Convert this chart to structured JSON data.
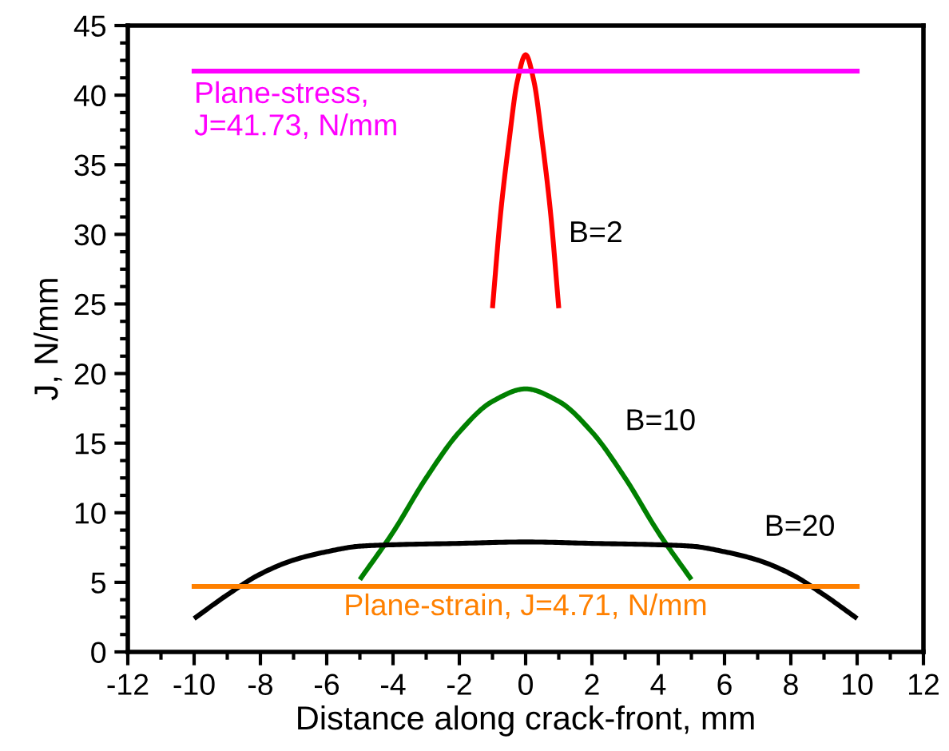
{
  "chart_data": {
    "type": "line",
    "xlabel": "Distance along crack-front, mm",
    "ylabel": "J, N/mm",
    "series": [
      {
        "name": "B=2",
        "color": "#ff0000",
        "x": [
          -1,
          -0.75,
          -0.5,
          -0.25,
          0,
          0.25,
          0.5,
          0.75,
          1
        ],
        "values": [
          24.7,
          31.6,
          36.7,
          41.0,
          42.9,
          41.0,
          36.7,
          31.6,
          24.7
        ]
      },
      {
        "name": "B=10",
        "color": "#008000",
        "x": [
          -5,
          -4,
          -3,
          -2,
          -1,
          0,
          1,
          2,
          3,
          4,
          5
        ],
        "values": [
          5.2,
          8.6,
          12.5,
          15.8,
          18.0,
          18.9,
          18.0,
          15.8,
          12.5,
          8.6,
          5.2
        ]
      },
      {
        "name": "B=20",
        "color": "#000000",
        "x": [
          -10,
          -9,
          -8,
          -7,
          -6,
          -5,
          -4,
          -2,
          0,
          2,
          4,
          5,
          6,
          7,
          8,
          9,
          10
        ],
        "values": [
          2.4,
          4.1,
          5.6,
          6.6,
          7.2,
          7.6,
          7.7,
          7.8,
          7.9,
          7.8,
          7.7,
          7.6,
          7.2,
          6.6,
          5.6,
          4.1,
          2.4
        ]
      }
    ],
    "ref_lines": [
      {
        "axis": "y",
        "value": 41.73,
        "label": "Plane-stress,\nJ=41.73, N/mm",
        "color": "#ff00ff"
      },
      {
        "axis": "y",
        "value": 4.71,
        "label": "Plane-strain, J=4.71, N/mm",
        "color": "#ff8000"
      }
    ],
    "xlim": [
      -12,
      12
    ],
    "xticks": [
      -12,
      {
        "value": -11,
        "label": null
      },
      -10,
      {
        "value": -9,
        "label": null
      },
      -8,
      {
        "value": -7,
        "label": null
      },
      -6,
      {
        "value": -5,
        "label": null
      },
      -4,
      {
        "value": -3,
        "label": null
      },
      -2,
      {
        "value": -1,
        "label": null
      },
      0,
      {
        "value": 1,
        "label": null
      },
      2,
      {
        "value": 3,
        "label": null
      },
      4,
      {
        "value": 5,
        "label": null
      },
      6,
      {
        "value": 7,
        "label": null
      },
      8,
      {
        "value": 9,
        "label": null
      },
      10,
      {
        "value": 11,
        "label": null
      },
      12
    ],
    "ylim": [
      0,
      45
    ],
    "yticks": [
      0,
      {
        "value": 1.25,
        "label": null
      },
      {
        "value": 2.5,
        "label": null
      },
      {
        "value": 3.75,
        "label": null
      },
      5,
      {
        "value": 6.25,
        "label": null
      },
      {
        "value": 7.5,
        "label": null
      },
      {
        "value": 8.75,
        "label": null
      },
      10,
      {
        "value": 11.25,
        "label": null
      },
      {
        "value": 12.5,
        "label": null
      },
      {
        "value": 13.75,
        "label": null
      },
      15,
      {
        "value": 16.25,
        "label": null
      },
      {
        "value": 17.5,
        "label": null
      },
      {
        "value": 18.75,
        "label": null
      },
      20,
      {
        "value": 21.25,
        "label": null
      },
      {
        "value": 22.5,
        "label": null
      },
      {
        "value": 23.75,
        "label": null
      },
      25,
      {
        "value": 26.25,
        "label": null
      },
      {
        "value": 27.5,
        "label": null
      },
      {
        "value": 28.75,
        "label": null
      },
      30,
      {
        "value": 31.25,
        "label": null
      },
      {
        "value": 32.5,
        "label": null
      },
      {
        "value": 33.75,
        "label": null
      },
      35,
      {
        "value": 36.25,
        "label": null
      },
      {
        "value": 37.5,
        "label": null
      },
      {
        "value": 38.75,
        "label": null
      },
      40,
      {
        "value": 41.25,
        "label": null
      },
      {
        "value": 42.5,
        "label": null
      },
      {
        "value": 43.75,
        "label": null
      },
      45
    ],
    "line_style": "solid",
    "marker": "none"
  }
}
